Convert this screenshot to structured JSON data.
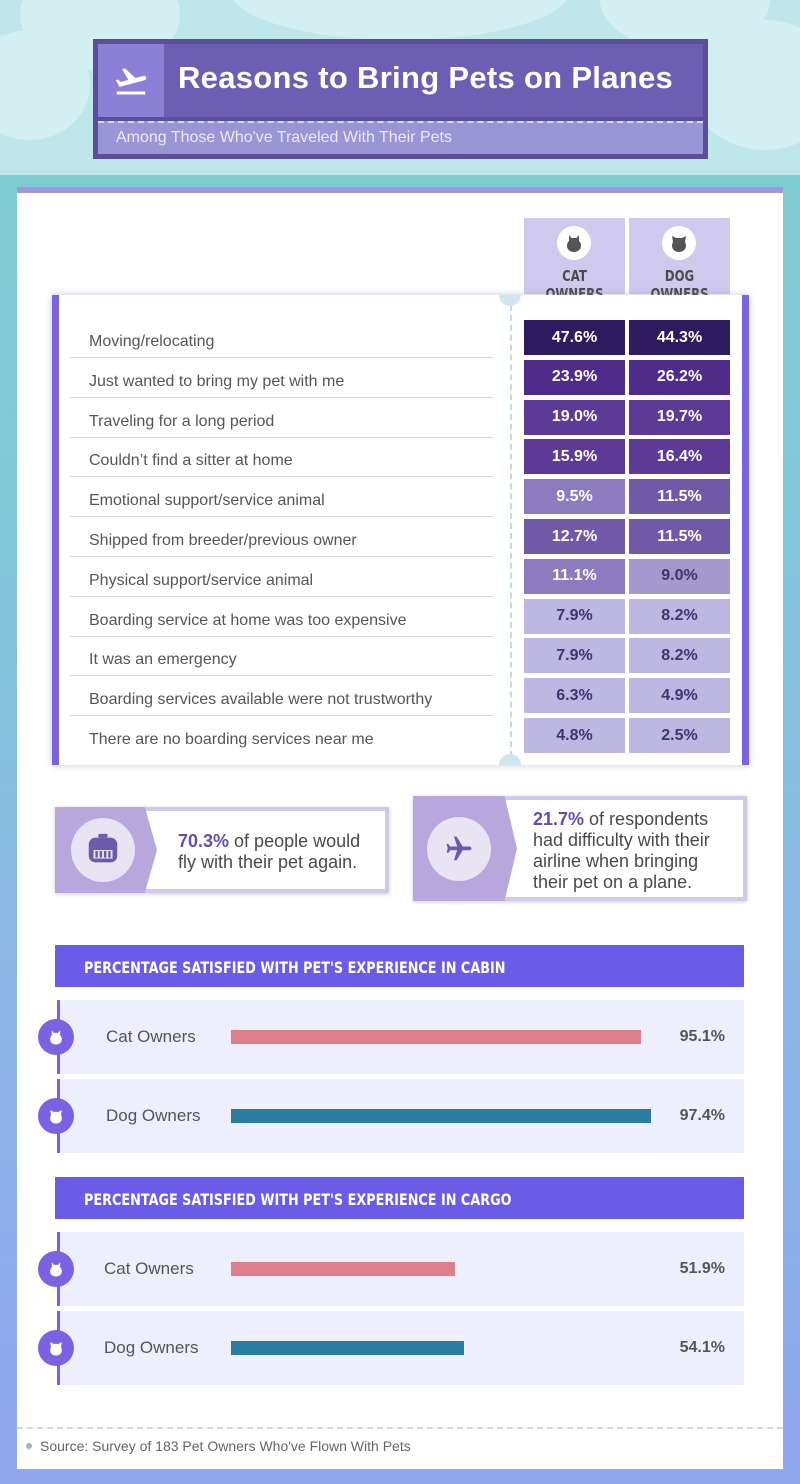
{
  "header": {
    "title": "Reasons to Bring Pets on Planes",
    "subtitle": "Among Those Who've Traveled With Their Pets"
  },
  "table": {
    "columns": [
      "CAT OWNERS",
      "DOG OWNERS"
    ]
  },
  "chart_data": [
    {
      "type": "table",
      "columns": [
        "CAT OWNERS",
        "DOG OWNERS"
      ],
      "rows": [
        {
          "label": "Moving/relocating",
          "cat": "47.6%",
          "dog": "44.3%"
        },
        {
          "label": "Just wanted to bring my pet with me",
          "cat": "23.9%",
          "dog": "26.2%"
        },
        {
          "label": "Traveling for a long period",
          "cat": "19.0%",
          "dog": "19.7%"
        },
        {
          "label": "Couldn’t find a sitter at home",
          "cat": "15.9%",
          "dog": "16.4%"
        },
        {
          "label": "Emotional support/service animal",
          "cat": "9.5%",
          "dog": "11.5%"
        },
        {
          "label": "Shipped from breeder/previous owner",
          "cat": "12.7%",
          "dog": "11.5%"
        },
        {
          "label": "Physical support/service animal",
          "cat": "11.1%",
          "dog": "9.0%"
        },
        {
          "label": "Boarding service at home was too expensive",
          "cat": "7.9%",
          "dog": "8.2%"
        },
        {
          "label": "It was an emergency",
          "cat": "7.9%",
          "dog": "8.2%"
        },
        {
          "label": "Boarding services available were not trustworthy",
          "cat": "6.3%",
          "dog": "4.9%"
        },
        {
          "label": "There are no boarding services near me",
          "cat": "4.8%",
          "dog": "2.5%"
        }
      ]
    },
    {
      "type": "bar",
      "title": "PERCENTAGE SATISFIED WITH PET'S EXPERIENCE IN CABIN",
      "categories": [
        "Cat Owners",
        "Dog Owners"
      ],
      "values": [
        95.1,
        97.4
      ],
      "labels": [
        "95.1%",
        "97.4%"
      ],
      "ylim": [
        0,
        100
      ]
    },
    {
      "type": "bar",
      "title": "PERCENTAGE SATISFIED WITH PET'S EXPERIENCE IN CARGO",
      "categories": [
        "Cat Owners",
        "Dog Owners"
      ],
      "values": [
        51.9,
        54.1
      ],
      "labels": [
        "51.9%",
        "54.1%"
      ],
      "ylim": [
        0,
        100
      ]
    }
  ],
  "stats": [
    {
      "value": "70.3%",
      "line1_rest": " of people would",
      "line2": "fly with their pet again."
    },
    {
      "value": "21.7%",
      "line1_rest": " of respondents",
      "line2": "had difficulty with their",
      "line3": "airline when bringing",
      "line4": "their pet on a plane."
    }
  ],
  "colors": {
    "cat_bar": "#e07f8c",
    "dog_bar": "#2c7ca1",
    "accent": "#6b5ce7"
  },
  "source": "Source: Survey of 183 Pet Owners Who've Flown With Pets"
}
